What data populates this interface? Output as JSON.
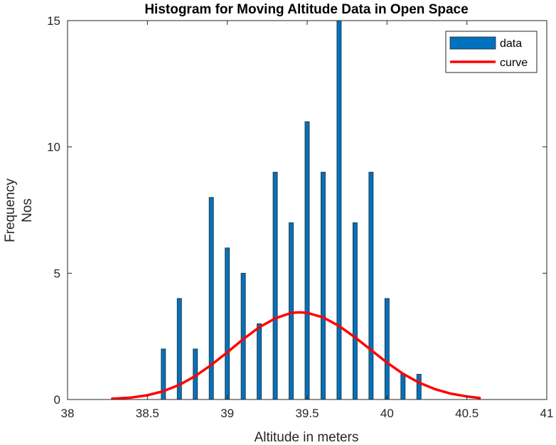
{
  "chart_data": {
    "type": "bar",
    "title": "Histogram for Moving Altitude Data in Open Space",
    "xlabel": "Altitude in meters",
    "ylabel": [
      "Frequency",
      "Nos"
    ],
    "xlim": [
      38,
      41
    ],
    "ylim": [
      0,
      15
    ],
    "xticks": [
      38,
      38.5,
      39,
      39.5,
      40,
      40.5,
      41
    ],
    "xtick_labels": [
      "38",
      "38.5",
      "39",
      "39.5",
      "40",
      "40.5",
      "41"
    ],
    "yticks": [
      0,
      5,
      10,
      15
    ],
    "ytick_labels": [
      "0",
      "5",
      "10",
      "15"
    ],
    "grid": false,
    "legend_position": "top-right",
    "series": [
      {
        "name": "data",
        "type": "bar",
        "color": "#0072BD",
        "x": [
          38.6,
          38.7,
          38.8,
          38.9,
          39.0,
          39.1,
          39.2,
          39.3,
          39.4,
          39.5,
          39.6,
          39.7,
          39.8,
          39.9,
          40.0,
          40.1,
          40.2
        ],
        "values": [
          2,
          4,
          2,
          8,
          6,
          5,
          3,
          9,
          7,
          11,
          9,
          15,
          7,
          9,
          4,
          1,
          1
        ]
      },
      {
        "name": "curve",
        "type": "line",
        "color": "#FF0000",
        "x": [
          38.28,
          38.4,
          38.5,
          38.6,
          38.7,
          38.8,
          38.9,
          39.0,
          39.1,
          39.2,
          39.3,
          39.4,
          39.45,
          39.5,
          39.6,
          39.7,
          39.8,
          39.9,
          40.0,
          40.1,
          40.2,
          40.3,
          40.4,
          40.5,
          40.58
        ],
        "values": [
          0.03,
          0.08,
          0.17,
          0.33,
          0.58,
          0.93,
          1.37,
          1.87,
          2.39,
          2.86,
          3.21,
          3.43,
          3.45,
          3.43,
          3.25,
          2.91,
          2.46,
          1.96,
          1.46,
          1.02,
          0.67,
          0.41,
          0.23,
          0.12,
          0.06
        ]
      }
    ]
  }
}
